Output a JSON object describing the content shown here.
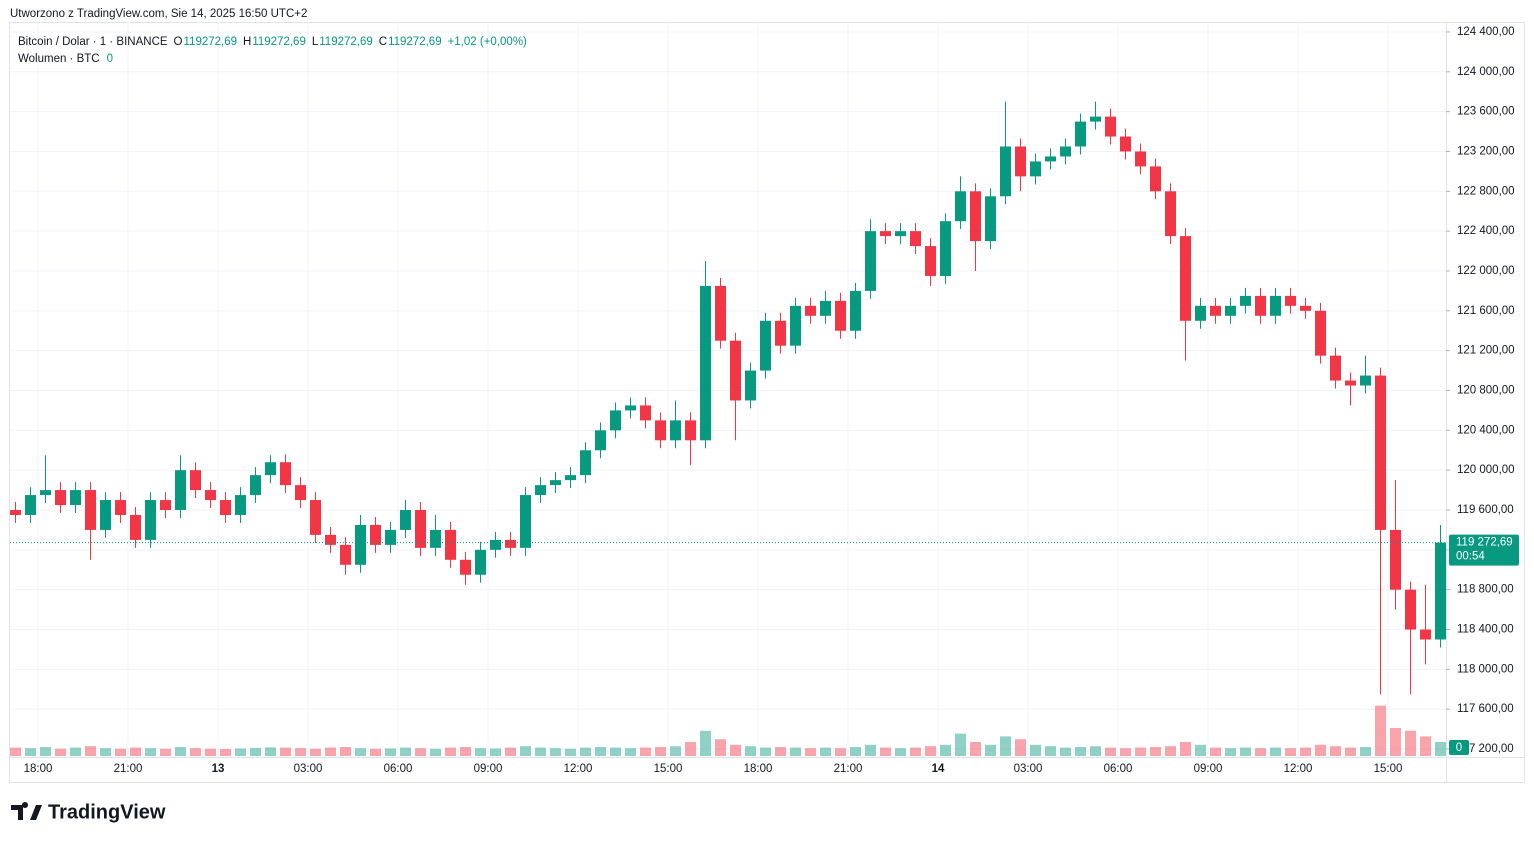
{
  "chart_data": {
    "type": "candlestick",
    "caption": "Utworzono z TradingView.com, Sie 14, 2025 16:50 UTC+2",
    "legend": {
      "symbol": "Bitcoin / Dolar · 1 · BINANCE",
      "ohlc": [
        {
          "key": "O",
          "value": "119272,69"
        },
        {
          "key": "H",
          "value": "119272,69"
        },
        {
          "key": "L",
          "value": "119272,69"
        },
        {
          "key": "C",
          "value": "119272,69"
        }
      ],
      "change": "+1,02 (+0,00%)",
      "volume_name": "Wolumen · BTC",
      "volume_value": "0"
    },
    "up_color": "#089981",
    "down_color": "#f23645",
    "open": [
      119600,
      119550,
      119750,
      119800,
      119650,
      119800,
      119400,
      119700,
      119550,
      119300,
      119700,
      119600,
      120000,
      119800,
      119700,
      119550,
      119750,
      119950,
      120080,
      119850,
      119700,
      119350,
      119250,
      119050,
      119450,
      119250,
      119400,
      119600,
      119220,
      119400,
      119100,
      118950,
      119200,
      119300,
      119220,
      119750,
      119850,
      119900,
      119950,
      120200,
      120400,
      120600,
      120650,
      120500,
      120300,
      120500,
      120300,
      121850,
      121300,
      120700,
      121000,
      121500,
      121250,
      121650,
      121550,
      121700,
      121400,
      121800,
      122400,
      122350,
      122400,
      122250,
      121950,
      122500,
      122800,
      122300,
      122750,
      123250,
      122950,
      123100,
      123150,
      123250,
      123500,
      123550,
      123350,
      123200,
      123050,
      122800,
      122350,
      121500,
      121650,
      121550,
      121650,
      121750,
      121550,
      121750,
      121650,
      121600,
      121150,
      120900,
      120850,
      120950,
      119400,
      118800,
      118400,
      118300
    ],
    "high": [
      119680,
      119830,
      120150,
      119880,
      119880,
      119880,
      119780,
      119780,
      119630,
      119780,
      119780,
      120150,
      120080,
      119880,
      119780,
      119830,
      120030,
      120150,
      120160,
      119930,
      119780,
      119430,
      119330,
      119550,
      119530,
      119480,
      119700,
      119680,
      119550,
      119480,
      119180,
      119280,
      119380,
      119380,
      119830,
      119930,
      119980,
      120030,
      120280,
      120480,
      120680,
      120730,
      120730,
      120580,
      120700,
      120580,
      122100,
      121930,
      121380,
      121080,
      121580,
      121580,
      121730,
      121730,
      121800,
      121780,
      121880,
      122520,
      122480,
      122480,
      122480,
      122330,
      122580,
      122950,
      122880,
      122830,
      123700,
      123330,
      123180,
      123230,
      123330,
      123580,
      123700,
      123630,
      123430,
      123280,
      123130,
      122880,
      122430,
      121730,
      121730,
      121730,
      121830,
      121830,
      121830,
      121830,
      121730,
      121680,
      121230,
      120980,
      121150,
      121030,
      119900,
      118880,
      118850,
      119450
    ],
    "low": [
      119470,
      119470,
      119670,
      119570,
      119570,
      119100,
      119320,
      119470,
      119220,
      119220,
      119520,
      119520,
      119720,
      119620,
      119470,
      119470,
      119670,
      119870,
      119770,
      119620,
      119270,
      119170,
      118950,
      118970,
      119170,
      119170,
      119320,
      119140,
      119140,
      119020,
      118850,
      118870,
      119120,
      119140,
      119140,
      119670,
      119770,
      119820,
      119870,
      120120,
      120320,
      120520,
      120420,
      120220,
      120220,
      120050,
      120220,
      121220,
      120300,
      120620,
      120920,
      121170,
      121170,
      121470,
      121470,
      121320,
      121320,
      121720,
      122270,
      122270,
      122170,
      121850,
      121870,
      122420,
      122000,
      122220,
      122670,
      122800,
      122870,
      123020,
      123070,
      123170,
      123420,
      123270,
      123120,
      122970,
      122720,
      122270,
      121100,
      121420,
      121470,
      121470,
      121570,
      121470,
      121470,
      121570,
      121520,
      121070,
      120820,
      120650,
      120770,
      117750,
      118600,
      117750,
      118050,
      118220
    ],
    "close": [
      119550,
      119750,
      119800,
      119650,
      119800,
      119400,
      119700,
      119550,
      119300,
      119700,
      119600,
      120000,
      119800,
      119700,
      119550,
      119750,
      119950,
      120080,
      119850,
      119700,
      119350,
      119250,
      119050,
      119450,
      119250,
      119400,
      119600,
      119220,
      119400,
      119100,
      118950,
      119200,
      119300,
      119220,
      119750,
      119850,
      119900,
      119950,
      120200,
      120400,
      120600,
      120650,
      120500,
      120300,
      120500,
      120300,
      121850,
      121300,
      120700,
      121000,
      121500,
      121250,
      121650,
      121550,
      121700,
      121400,
      121800,
      122400,
      122350,
      122400,
      122250,
      121950,
      122500,
      122800,
      122300,
      122750,
      123250,
      122950,
      123100,
      123150,
      123250,
      123500,
      123550,
      123350,
      123200,
      123050,
      122800,
      122350,
      121500,
      121650,
      121550,
      121650,
      121750,
      121550,
      121750,
      121650,
      121600,
      121150,
      120900,
      120850,
      120950,
      119400,
      118800,
      118400,
      118300,
      119272.69
    ],
    "volume": [
      300,
      280,
      320,
      260,
      300,
      350,
      280,
      260,
      300,
      280,
      260,
      320,
      280,
      260,
      250,
      270,
      290,
      310,
      300,
      280,
      260,
      300,
      320,
      280,
      260,
      270,
      300,
      280,
      260,
      300,
      320,
      280,
      270,
      300,
      350,
      300,
      280,
      260,
      300,
      320,
      300,
      280,
      300,
      320,
      350,
      500,
      900,
      600,
      400,
      350,
      300,
      320,
      300,
      280,
      300,
      280,
      320,
      400,
      300,
      280,
      300,
      350,
      400,
      800,
      500,
      400,
      700,
      600,
      400,
      350,
      300,
      320,
      350,
      300,
      280,
      300,
      320,
      350,
      500,
      400,
      300,
      280,
      300,
      280,
      300,
      280,
      300,
      400,
      350,
      300,
      320,
      1800,
      1000,
      900,
      700,
      500
    ],
    "vlim": [
      0,
      2500
    ],
    "ylim": [
      117130,
      124500
    ],
    "yticks": [
      {
        "value": 117200,
        "label": "117 200,00"
      },
      {
        "value": 117600,
        "label": "117 600,00"
      },
      {
        "value": 118000,
        "label": "118 000,00"
      },
      {
        "value": 118400,
        "label": "118 400,00"
      },
      {
        "value": 118800,
        "label": "118 800,00"
      },
      {
        "value": 119200,
        "label": "119 200,00"
      },
      {
        "value": 119600,
        "label": "119 600,00"
      },
      {
        "value": 120000,
        "label": "120 000,00"
      },
      {
        "value": 120400,
        "label": "120 400,00"
      },
      {
        "value": 120800,
        "label": "120 800,00"
      },
      {
        "value": 121200,
        "label": "121 200,00"
      },
      {
        "value": 121600,
        "label": "121 600,00"
      },
      {
        "value": 122000,
        "label": "122 000,00"
      },
      {
        "value": 122400,
        "label": "122 400,00"
      },
      {
        "value": 122800,
        "label": "122 800,00"
      },
      {
        "value": 123200,
        "label": "123 200,00"
      },
      {
        "value": 123600,
        "label": "123 600,00"
      },
      {
        "value": 124000,
        "label": "124 000,00"
      },
      {
        "value": 124400,
        "label": "124 400,00"
      }
    ],
    "xtick_labels": [
      "18:00",
      "21:00",
      "13",
      "03:00",
      "06:00",
      "09:00",
      "12:00",
      "15:00",
      "18:00",
      "21:00",
      "14",
      "03:00",
      "06:00",
      "09:00",
      "12:00",
      "15:00"
    ],
    "last_price": 119272.69,
    "last_price_label": "119 272,69",
    "countdown": "00:54",
    "volume_tag": "0",
    "brand": "TradingView"
  }
}
